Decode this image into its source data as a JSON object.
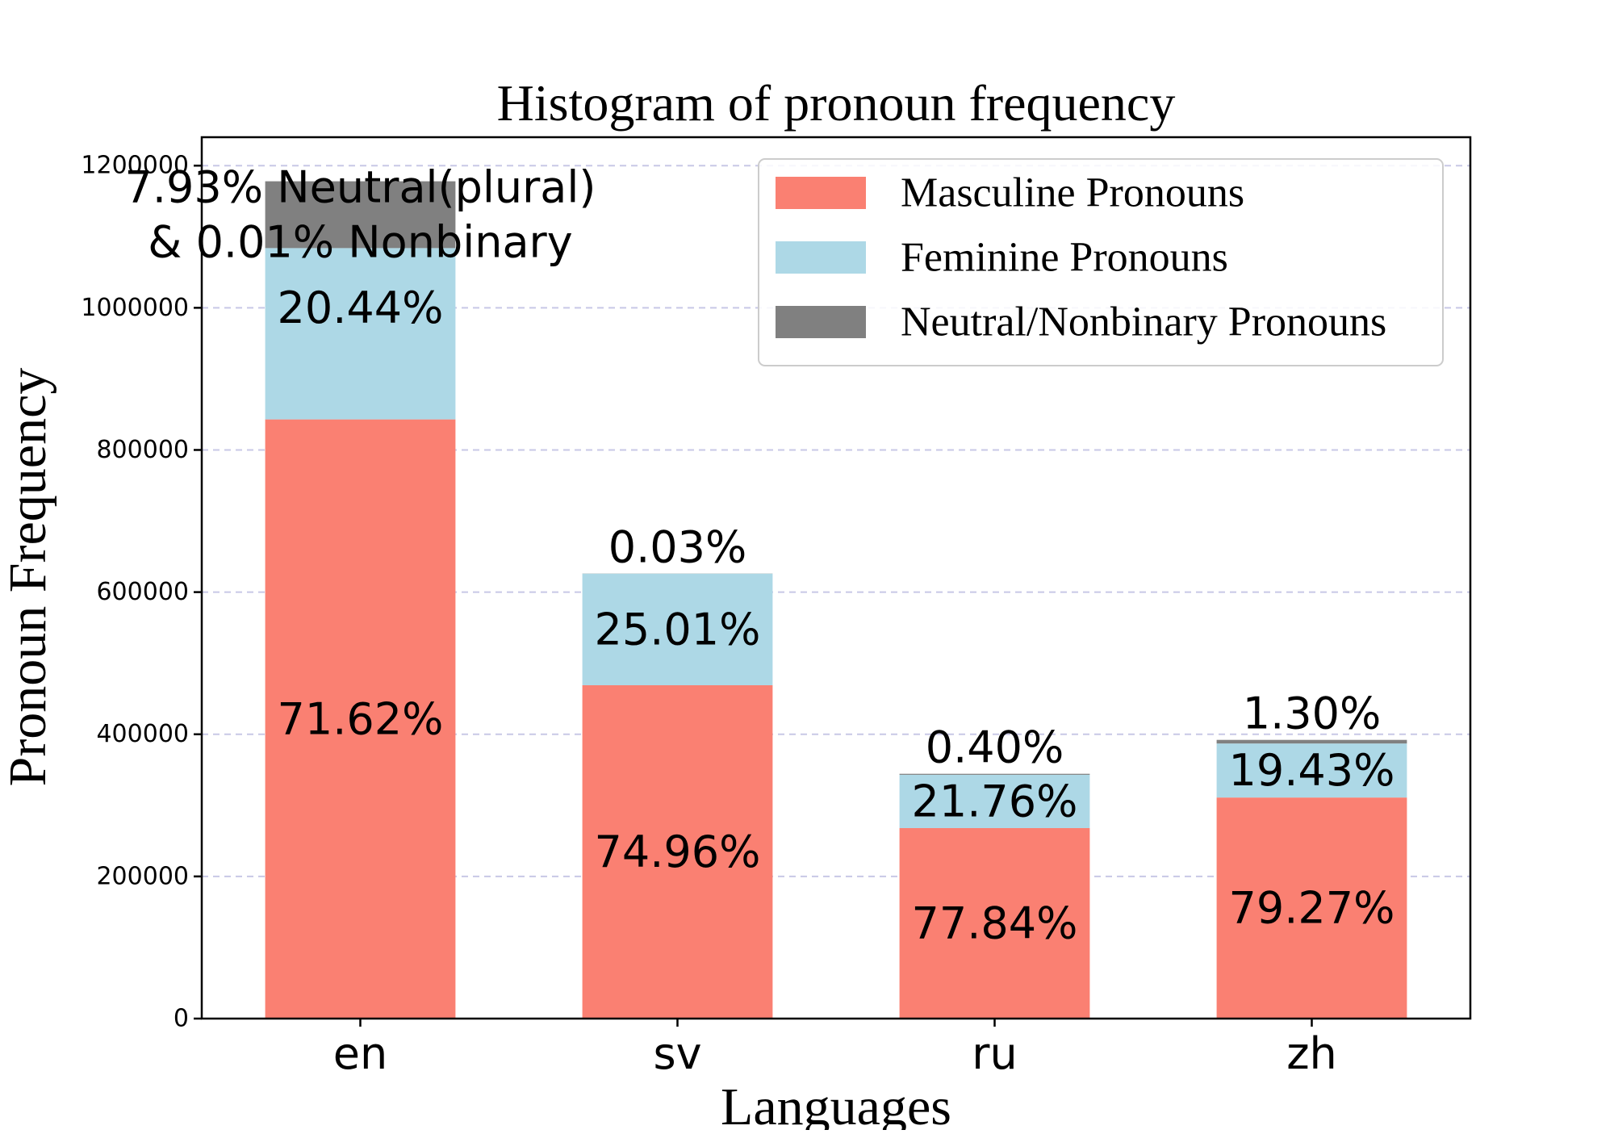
{
  "chart_data": {
    "type": "bar",
    "stacked": true,
    "title": "Histogram of pronoun frequency",
    "xlabel": "Languages",
    "ylabel": "Pronoun Frequency",
    "categories": [
      "en",
      "sv",
      "ru",
      "zh"
    ],
    "ylim": [
      0,
      1240000
    ],
    "yticks": [
      0,
      200000,
      400000,
      600000,
      800000,
      1000000,
      1200000
    ],
    "ytick_labels": [
      "0",
      "200000",
      "400000",
      "600000",
      "800000",
      "1000000",
      "1200000"
    ],
    "grid": "horizontal dashed",
    "legend_position": "top-right",
    "series": [
      {
        "name": "Masculine Pronouns",
        "color": "#fa8072",
        "values": [
          843000,
          469000,
          268000,
          311000
        ],
        "labels": [
          "71.62%",
          "74.96%",
          "77.84%",
          "79.27%"
        ]
      },
      {
        "name": "Feminine Pronouns",
        "color": "#add8e6",
        "values": [
          241000,
          157000,
          75000,
          76000
        ],
        "labels": [
          "20.44%",
          "25.01%",
          "21.76%",
          "19.43%"
        ]
      },
      {
        "name": "Neutral/Nonbinary Pronouns",
        "color": "#808080",
        "values": [
          94000,
          200,
          1400,
          5100
        ],
        "labels": [
          "7.93% Neutral(plural)\n& 0.01% Nonbinary",
          "0.03%",
          "0.40%",
          "1.30%"
        ]
      }
    ]
  }
}
